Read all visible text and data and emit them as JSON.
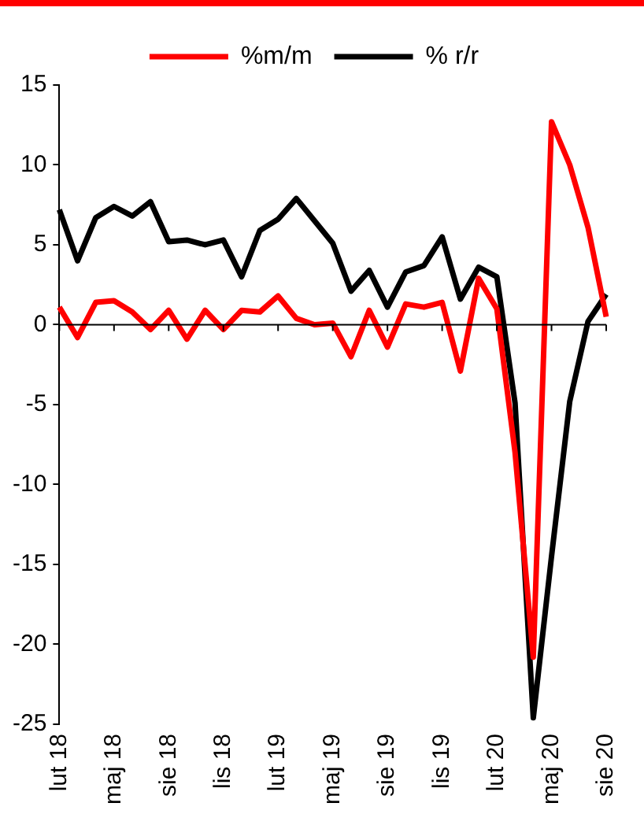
{
  "chart_data": {
    "type": "line",
    "categories": [
      "lut 18",
      null,
      null,
      "maj 18",
      null,
      null,
      "sie 18",
      null,
      null,
      "lis 18",
      null,
      null,
      "lut 19",
      null,
      null,
      "maj 19",
      null,
      null,
      "sie 19",
      null,
      null,
      "lis 19",
      null,
      null,
      "lut 20",
      null,
      null,
      "maj 20",
      null,
      null,
      "sie 20"
    ],
    "series": [
      {
        "name": "%m/m",
        "color": "#ff0000",
        "values": [
          1.1,
          -0.8,
          1.4,
          1.5,
          0.8,
          -0.3,
          0.9,
          -0.9,
          0.9,
          -0.3,
          0.9,
          0.8,
          1.8,
          0.4,
          0.0,
          0.1,
          -2.0,
          0.9,
          -1.4,
          1.3,
          1.1,
          1.4,
          -2.9,
          2.9,
          1.0,
          -8.0,
          -20.8,
          12.7,
          10.0,
          6.1,
          0.5
        ]
      },
      {
        "name": "% r/r",
        "color": "#000000",
        "values": [
          7.2,
          4.0,
          6.7,
          7.4,
          6.8,
          7.7,
          5.2,
          5.3,
          5.0,
          5.3,
          3.0,
          5.9,
          6.6,
          7.9,
          6.5,
          5.1,
          2.1,
          3.4,
          1.1,
          3.3,
          3.7,
          5.5,
          1.6,
          3.6,
          3.0,
          -4.9,
          -24.6,
          -14.5,
          -4.8,
          0.2,
          1.9
        ]
      }
    ],
    "ylim": [
      -25,
      15
    ],
    "yticks": [
      -25,
      -20,
      -15,
      -10,
      -5,
      0,
      5,
      10,
      15
    ],
    "legend": "top",
    "marker": "none",
    "line_style": "solid"
  }
}
